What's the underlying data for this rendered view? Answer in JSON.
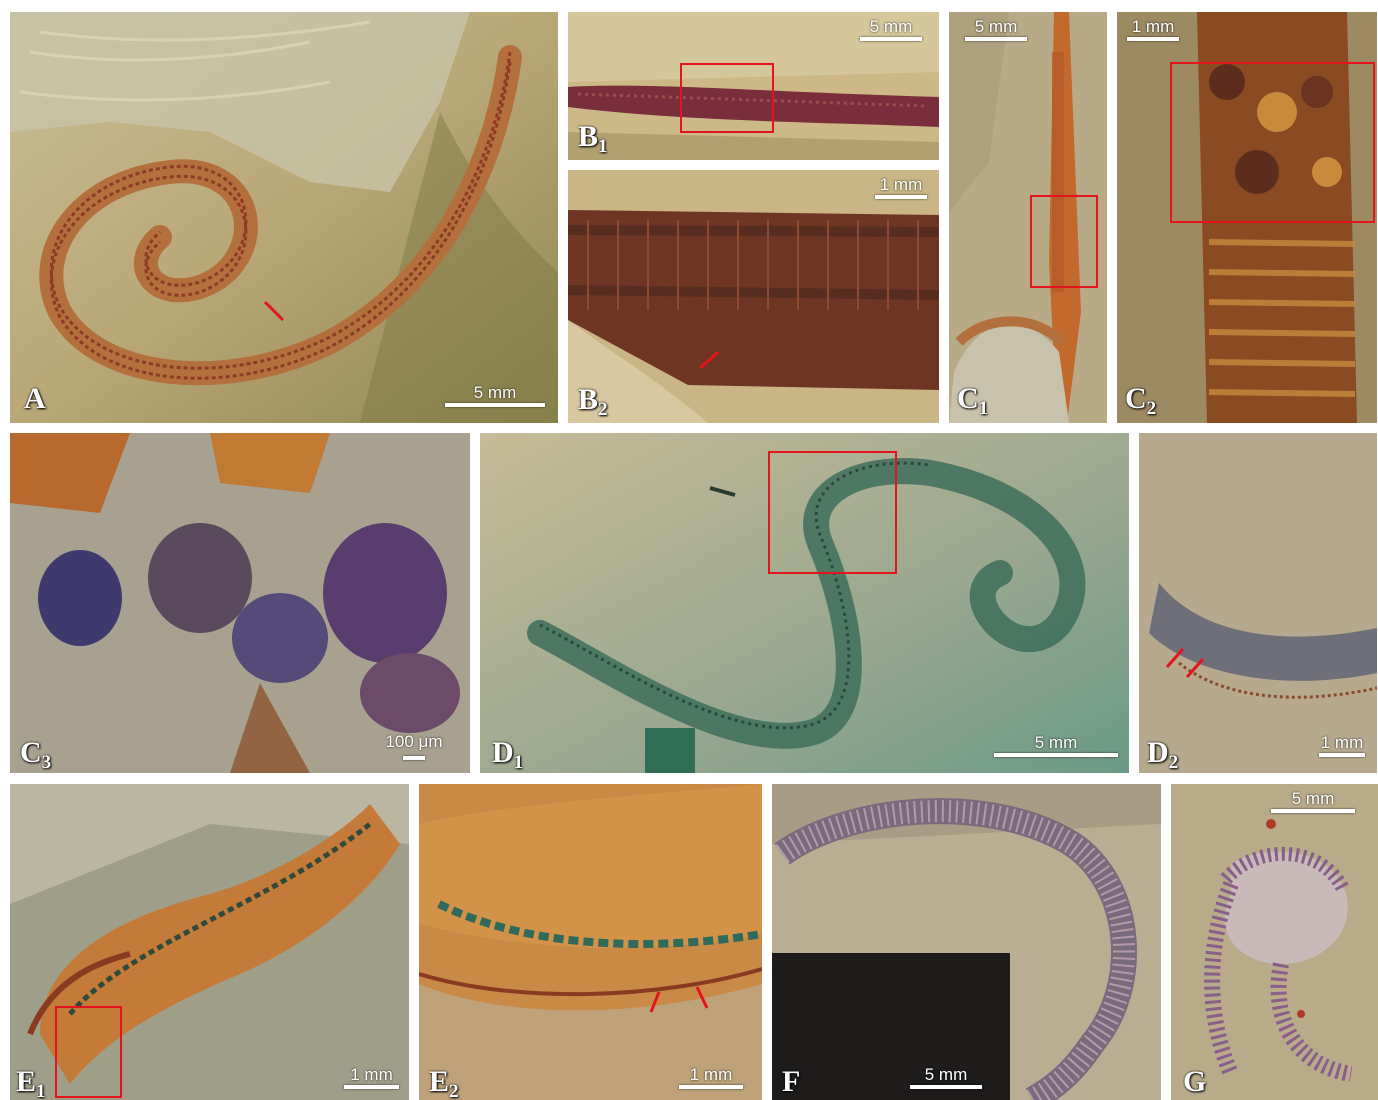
{
  "panels": [
    {
      "id": "A",
      "label": "A",
      "sub": "",
      "scale": "5 mm"
    },
    {
      "id": "B1",
      "label": "B",
      "sub": "1",
      "scale": "5 mm"
    },
    {
      "id": "B2",
      "label": "B",
      "sub": "2",
      "scale": "1 mm"
    },
    {
      "id": "C1",
      "label": "C",
      "sub": "1",
      "scale": "5 mm"
    },
    {
      "id": "C2",
      "label": "C",
      "sub": "2",
      "scale": "1 mm"
    },
    {
      "id": "C3",
      "label": "C",
      "sub": "3",
      "scale": "100 μm"
    },
    {
      "id": "D1",
      "label": "D",
      "sub": "1",
      "scale": "5 mm"
    },
    {
      "id": "D2",
      "label": "D",
      "sub": "2",
      "scale": "1 mm"
    },
    {
      "id": "E1",
      "label": "E",
      "sub": "1",
      "scale": "1 mm"
    },
    {
      "id": "E2",
      "label": "E",
      "sub": "2",
      "scale": "1 mm"
    },
    {
      "id": "F",
      "label": "F",
      "sub": "",
      "scale": "5 mm"
    },
    {
      "id": "G",
      "label": "G",
      "sub": "",
      "scale": "5 mm"
    }
  ],
  "colors": {
    "highlight_box": "#e3141b",
    "arrow": "#e3141b",
    "label_text": "#ffffff",
    "scale_bar": "#ffffff"
  }
}
